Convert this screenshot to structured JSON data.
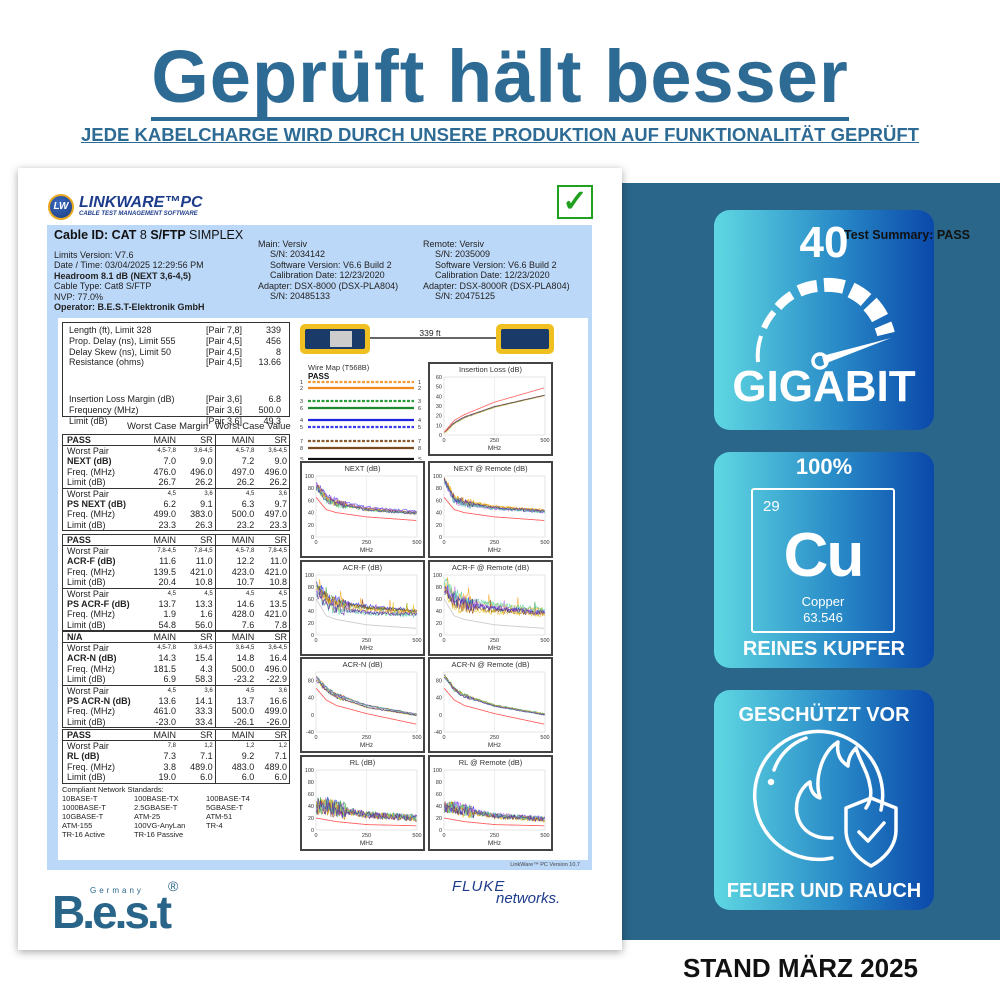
{
  "hero": {
    "title": "Geprüft hält besser",
    "subtitle": "JEDE KABELCHARGE  WIRD DURCH UNSERE PRODUKTION AUF FUNKTIONALITÄT GEPRÜFT"
  },
  "colors": {
    "brand_blue": "#2d6b94",
    "band": "#296689",
    "badge_from": "#5fd8e2",
    "badge_to": "#0a48aa",
    "report_frame": "#bcd8f8",
    "pass_check": "#1fa01f"
  },
  "badges": {
    "speed": {
      "number": "40",
      "label": "GIGABIT",
      "icon": "speedometer-icon"
    },
    "copper": {
      "top": "100%",
      "atomic_number": "29",
      "symbol": "Cu",
      "name": "Copper",
      "mass": "63.546",
      "label": "REINES KUPFER"
    },
    "fire": {
      "top": "GESCHÜTZT VOR",
      "bottom": "FEUER UND RAUCH",
      "icon": "fire-shield-icon"
    }
  },
  "stand": "STAND MÄRZ 2025",
  "report": {
    "logo": {
      "name": "LINKWARE™PC",
      "tagline": "CABLE TEST MANAGEMENT SOFTWARE",
      "badge": "LW"
    },
    "cable_id": {
      "prefix": "Cable ID: CAT",
      "num": "8",
      "type": "S/FTP",
      "suffix": "SIMPLEX"
    },
    "summary": "Test Summary: PASS",
    "left_info": [
      "Limits Version: V7.6",
      "Date / Time: 03/04/2025  12:29:56 PM",
      "Headroom 8.1 dB (NEXT 3,6-4,5)",
      "Cable Type: Cat8  S/FTP",
      "NVP: 77.0%",
      "Operator: B.E.S.T-Elektronik GmbH"
    ],
    "main_info": [
      "Main: Versiv",
      "S/N: 2034142",
      "Software Version: V6.6 Build 2",
      "Calibration Date: 12/23/2020",
      "Adapter: DSX-8000 (DSX-PLA804)",
      "S/N: 20485133"
    ],
    "remote_info": [
      "Remote: Versiv",
      "S/N: 2035009",
      "Software Version: V6.6 Build 2",
      "Calibration Date: 12/23/2020",
      "Adapter: DSX-8000R (DSX-PLA804)",
      "S/N: 20475125"
    ],
    "summary_rows": [
      {
        "label": "Length (ft), Limit 328",
        "pair": "[Pair 7,8]",
        "value": "339"
      },
      {
        "label": "Prop. Delay (ns), Limit 555",
        "pair": "[Pair 4,5]",
        "value": "456"
      },
      {
        "label": "Delay Skew (ns), Limit 50",
        "pair": "[Pair 4,5]",
        "value": "8"
      },
      {
        "label": "Resistance (ohms)",
        "pair": "[Pair 4,5]",
        "value": "13.66"
      },
      {
        "label": "Insertion Loss Margin (dB)",
        "pair": "[Pair 3,6]",
        "value": "6.8"
      },
      {
        "label": "Frequency (MHz)",
        "pair": "[Pair 3,6]",
        "value": "500.0"
      },
      {
        "label": "Limit (dB)",
        "pair": "[Pair 3,6]",
        "value": "49.3"
      }
    ],
    "worst_margin": "Worst Case Margin",
    "worst_value": "Worst Case Value",
    "tables": [
      {
        "status": "PASS",
        "cols": [
          "MAIN",
          "SR",
          "MAIN",
          "SR"
        ],
        "groups": [
          [
            [
              "Worst Pair",
              "4,5-7,8",
              "3,6-4,5",
              "4,5-7,8",
              "3,6-4,5"
            ],
            [
              "NEXT (dB)",
              "7.0",
              "9.0",
              "7.2",
              "9.0"
            ],
            [
              "Freq. (MHz)",
              "476.0",
              "496.0",
              "497.0",
              "496.0"
            ],
            [
              "Limit (dB)",
              "26.7",
              "26.2",
              "26.2",
              "26.2"
            ]
          ],
          [
            [
              "Worst Pair",
              "4,5",
              "3,6",
              "4,5",
              "3,6"
            ],
            [
              "PS NEXT (dB)",
              "6.2",
              "9.1",
              "6.3",
              "9.7"
            ],
            [
              "Freq. (MHz)",
              "499.0",
              "383.0",
              "500.0",
              "497.0"
            ],
            [
              "Limit (dB)",
              "23.3",
              "26.3",
              "23.2",
              "23.3"
            ]
          ]
        ]
      },
      {
        "status": "PASS",
        "cols": [
          "MAIN",
          "SR",
          "MAIN",
          "SR"
        ],
        "groups": [
          [
            [
              "Worst Pair",
              "7,8-4,5",
              "7,8-4,5",
              "4,5-7,8",
              "7,8-4,5"
            ],
            [
              "ACR-F (dB)",
              "11.6",
              "11.0",
              "12.2",
              "11.0"
            ],
            [
              "Freq. (MHz)",
              "139.5",
              "421.0",
              "423.0",
              "421.0"
            ],
            [
              "Limit (dB)",
              "20.4",
              "10.8",
              "10.7",
              "10.8"
            ]
          ],
          [
            [
              "Worst Pair",
              "4,5",
              "4,5",
              "4,5",
              "4,5"
            ],
            [
              "PS ACR-F (dB)",
              "13.7",
              "13.3",
              "14.6",
              "13.5"
            ],
            [
              "Freq. (MHz)",
              "1.9",
              "1.6",
              "428.0",
              "421.0"
            ],
            [
              "Limit (dB)",
              "54.8",
              "56.0",
              "7.6",
              "7.8"
            ]
          ]
        ]
      },
      {
        "status": "N/A",
        "cols": [
          "MAIN",
          "SR",
          "MAIN",
          "SR"
        ],
        "groups": [
          [
            [
              "Worst Pair",
              "4,5-7,8",
              "3,6-4,5",
              "3,6-4,5",
              "3,6-4,5"
            ],
            [
              "ACR-N (dB)",
              "14.3",
              "15.4",
              "14.8",
              "16.4"
            ],
            [
              "Freq. (MHz)",
              "181.5",
              "4.3",
              "500.0",
              "496.0"
            ],
            [
              "Limit (dB)",
              "6.9",
              "58.3",
              "-23.2",
              "-22.9"
            ]
          ],
          [
            [
              "Worst Pair",
              "4,5",
              "3,6",
              "4,5",
              "3,6"
            ],
            [
              "PS ACR-N (dB)",
              "13.6",
              "14.1",
              "13.7",
              "16.6"
            ],
            [
              "Freq. (MHz)",
              "461.0",
              "33.3",
              "500.0",
              "499.0"
            ],
            [
              "Limit (dB)",
              "-23.0",
              "33.4",
              "-26.1",
              "-26.0"
            ]
          ]
        ]
      },
      {
        "status": "PASS",
        "cols": [
          "MAIN",
          "SR",
          "MAIN",
          "SR"
        ],
        "groups": [
          [
            [
              "Worst Pair",
              "7,8",
              "1,2",
              "1,2",
              "1,2"
            ],
            [
              "RL (dB)",
              "7.3",
              "7.1",
              "9.2",
              "7.1"
            ],
            [
              "Freq. (MHz)",
              "3.8",
              "489.0",
              "483.0",
              "489.0"
            ],
            [
              "Limit (dB)",
              "19.0",
              "6.0",
              "6.0",
              "6.0"
            ]
          ]
        ]
      }
    ],
    "standards_title": "Compliant Network Standards:",
    "standards": [
      "10BASE-T",
      "100BASE-TX",
      "100BASE-T4",
      "1000BASE-T",
      "2.5GBASE-T",
      "5GBASE-T",
      "10GBASE-T",
      "ATM-25",
      "ATM-51",
      "ATM-155",
      "100VG-AnyLan",
      "TR-4",
      "TR-16 Active",
      "TR-16 Passive"
    ],
    "length_label": "339 ft",
    "wire_map": {
      "title": "Wire Map (T568B)",
      "result": "PASS",
      "pairs": [
        {
          "pin": "1",
          "color": "#f39a3a",
          "striped": true
        },
        {
          "pin": "2",
          "color": "#f08a20",
          "striped": false
        },
        {
          "pin": "3",
          "color": "#2a9a3a",
          "striped": true
        },
        {
          "pin": "6",
          "color": "#1e8a2e",
          "striped": false
        },
        {
          "pin": "4",
          "color": "#2020e0",
          "striped": false
        },
        {
          "pin": "5",
          "color": "#3a3af0",
          "striped": true
        },
        {
          "pin": "7",
          "color": "#8a5a30",
          "striped": true
        },
        {
          "pin": "8",
          "color": "#7a4a20",
          "striped": false
        },
        {
          "pin": "S",
          "color": "#111111",
          "striped": false
        }
      ]
    },
    "version": "LinkWare™ PC Version 10.7",
    "best_logo": {
      "text": "B.e.s.t",
      "sub": "Germany",
      "reg": "®"
    },
    "fluke_logo": {
      "top": "FLUKE",
      "bottom": "networks."
    }
  },
  "chart_data": [
    {
      "type": "line",
      "title": "Insertion Loss (dB)",
      "xlabel": "MHz",
      "xlim": [
        0,
        500
      ],
      "xticks": [
        "0",
        "250",
        "500"
      ],
      "ylim": [
        0,
        60
      ],
      "yticks": [
        "0",
        "10",
        "20",
        "30",
        "40",
        "50",
        "60"
      ],
      "limit_color": "#ff7070",
      "limit": [
        [
          1,
          3
        ],
        [
          50,
          15
        ],
        [
          100,
          21
        ],
        [
          250,
          34
        ],
        [
          500,
          49
        ]
      ],
      "measured": [
        [
          1,
          2
        ],
        [
          50,
          12
        ],
        [
          100,
          18
        ],
        [
          250,
          29
        ],
        [
          500,
          41
        ]
      ]
    },
    {
      "type": "line",
      "title": "NEXT (dB)",
      "xlabel": "MHz",
      "xlim": [
        0,
        500
      ],
      "xticks": [
        "0",
        "250",
        "500"
      ],
      "ylim": [
        0,
        100
      ],
      "yticks": [
        "0",
        "20",
        "40",
        "60",
        "80",
        "100"
      ],
      "limit_color": "#ff6060",
      "limit": [
        [
          1,
          65
        ],
        [
          50,
          45
        ],
        [
          100,
          40
        ],
        [
          250,
          33
        ],
        [
          500,
          27
        ]
      ],
      "measured": [
        [
          1,
          85
        ],
        [
          50,
          65
        ],
        [
          100,
          57
        ],
        [
          250,
          47
        ],
        [
          500,
          40
        ]
      ]
    },
    {
      "type": "line",
      "title": "NEXT @ Remote (dB)",
      "xlabel": "MHz",
      "xlim": [
        0,
        500
      ],
      "xticks": [
        "0",
        "250",
        "500"
      ],
      "ylim": [
        0,
        100
      ],
      "yticks": [
        "0",
        "20",
        "40",
        "60",
        "80",
        "100"
      ],
      "limit_color": "#ff6060",
      "limit": [
        [
          1,
          65
        ],
        [
          50,
          45
        ],
        [
          100,
          40
        ],
        [
          250,
          33
        ],
        [
          500,
          27
        ]
      ],
      "measured": [
        [
          1,
          95
        ],
        [
          50,
          62
        ],
        [
          100,
          56
        ],
        [
          250,
          48
        ],
        [
          500,
          42
        ]
      ]
    },
    {
      "type": "line",
      "title": "ACR-F (dB)",
      "xlabel": "MHz",
      "xlim": [
        0,
        500
      ],
      "xticks": [
        "0",
        "250",
        "500"
      ],
      "ylim": [
        0,
        100
      ],
      "yticks": [
        "0",
        "20",
        "40",
        "60",
        "80",
        "100"
      ],
      "limit_color": "#cccccc",
      "limit": [
        [
          1,
          60
        ],
        [
          50,
          32
        ],
        [
          100,
          26
        ],
        [
          250,
          17
        ],
        [
          500,
          11
        ]
      ],
      "measured": [
        [
          1,
          80
        ],
        [
          50,
          60
        ],
        [
          100,
          52
        ],
        [
          250,
          44
        ],
        [
          500,
          38
        ]
      ]
    },
    {
      "type": "line",
      "title": "ACR-F @ Remote (dB)",
      "xlabel": "MHz",
      "xlim": [
        0,
        500
      ],
      "xticks": [
        "0",
        "250",
        "500"
      ],
      "ylim": [
        0,
        100
      ],
      "yticks": [
        "0",
        "20",
        "40",
        "60",
        "80",
        "100"
      ],
      "limit_color": "#cccccc",
      "limit": [
        [
          1,
          60
        ],
        [
          50,
          32
        ],
        [
          100,
          26
        ],
        [
          250,
          17
        ],
        [
          500,
          11
        ]
      ],
      "measured": [
        [
          1,
          80
        ],
        [
          50,
          60
        ],
        [
          100,
          53
        ],
        [
          250,
          45
        ],
        [
          500,
          38
        ]
      ]
    },
    {
      "type": "line",
      "title": "ACR-N (dB)",
      "xlabel": "MHz",
      "xlim": [
        0,
        500
      ],
      "xticks": [
        "0",
        "250",
        "500"
      ],
      "ylim": [
        -40,
        100
      ],
      "yticks": [
        "-40",
        "0",
        "40",
        "80"
      ],
      "limit_color": "#ff6060",
      "limit": [
        [
          1,
          62
        ],
        [
          50,
          35
        ],
        [
          100,
          22
        ],
        [
          250,
          3
        ],
        [
          500,
          -22
        ]
      ],
      "measured": [
        [
          1,
          85
        ],
        [
          50,
          60
        ],
        [
          100,
          45
        ],
        [
          250,
          20
        ],
        [
          500,
          0
        ]
      ]
    },
    {
      "type": "line",
      "title": "ACR-N @ Remote (dB)",
      "xlabel": "MHz",
      "xlim": [
        0,
        500
      ],
      "xticks": [
        "0",
        "250",
        "500"
      ],
      "ylim": [
        -40,
        100
      ],
      "yticks": [
        "-40",
        "0",
        "40",
        "80"
      ],
      "limit_color": "#ff6060",
      "limit": [
        [
          1,
          62
        ],
        [
          50,
          35
        ],
        [
          100,
          22
        ],
        [
          250,
          3
        ],
        [
          500,
          -22
        ]
      ],
      "measured": [
        [
          1,
          90
        ],
        [
          50,
          58
        ],
        [
          100,
          43
        ],
        [
          250,
          20
        ],
        [
          500,
          0
        ]
      ]
    },
    {
      "type": "line",
      "title": "RL (dB)",
      "xlabel": "MHz",
      "xlim": [
        0,
        500
      ],
      "xticks": [
        "0",
        "250",
        "500"
      ],
      "ylim": [
        0,
        100
      ],
      "yticks": [
        "0",
        "20",
        "40",
        "60",
        "80",
        "100"
      ],
      "limit_color": "#ff6060",
      "limit": [
        [
          1,
          20
        ],
        [
          50,
          17
        ],
        [
          100,
          14
        ],
        [
          250,
          9
        ],
        [
          500,
          7
        ]
      ],
      "measured": [
        [
          1,
          38
        ],
        [
          50,
          40
        ],
        [
          100,
          35
        ],
        [
          250,
          25
        ],
        [
          500,
          20
        ]
      ]
    },
    {
      "type": "line",
      "title": "RL @ Remote (dB)",
      "xlabel": "MHz",
      "xlim": [
        0,
        500
      ],
      "xticks": [
        "0",
        "250",
        "500"
      ],
      "ylim": [
        0,
        100
      ],
      "yticks": [
        "0",
        "20",
        "40",
        "60",
        "80",
        "100"
      ],
      "limit_color": "#ff6060",
      "limit": [
        [
          1,
          20
        ],
        [
          50,
          17
        ],
        [
          100,
          14
        ],
        [
          250,
          9
        ],
        [
          500,
          7
        ]
      ],
      "measured": [
        [
          1,
          38
        ],
        [
          50,
          38
        ],
        [
          100,
          33
        ],
        [
          250,
          24
        ],
        [
          500,
          18
        ]
      ]
    }
  ]
}
